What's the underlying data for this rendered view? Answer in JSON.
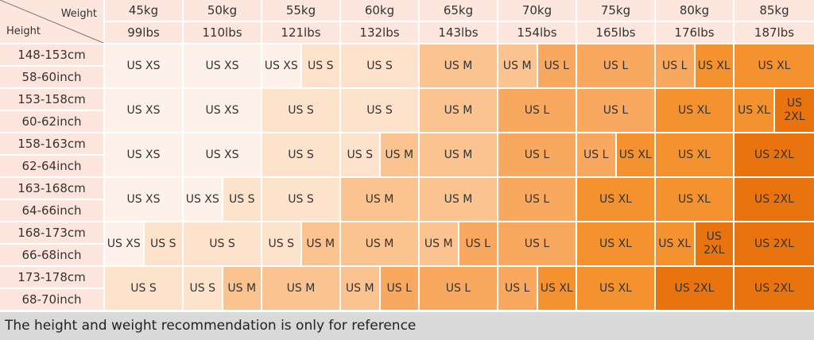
{
  "header": {
    "weight_label": "Weight",
    "height_label": "Height",
    "kg": [
      "45kg",
      "50kg",
      "55kg",
      "60kg",
      "65kg",
      "70kg",
      "75kg",
      "80kg",
      "85kg"
    ],
    "lbs": [
      "99lbs",
      "110lbs",
      "121lbs",
      "132lbs",
      "143lbs",
      "154lbs",
      "165lbs",
      "176lbs",
      "187lbs"
    ]
  },
  "palette": {
    "US XS": "#fdf1ea",
    "US S": "#fde2cc",
    "US M": "#fbc38f",
    "US L": "#f8a85f",
    "US XL": "#f3922f",
    "US 2XL": "#e8730f"
  },
  "rows": [
    {
      "cm": "148-153cm",
      "inch": "58-60inch",
      "cells": [
        [
          "US XS"
        ],
        [
          "US XS"
        ],
        [
          "US XS",
          "US S"
        ],
        [
          "US S"
        ],
        [
          "US M"
        ],
        [
          "US M",
          "US L"
        ],
        [
          "US L"
        ],
        [
          "US L",
          "US XL"
        ],
        [
          "US XL"
        ]
      ]
    },
    {
      "cm": "153-158cm",
      "inch": "60-62inch",
      "cells": [
        [
          "US XS"
        ],
        [
          "US XS"
        ],
        [
          "US S"
        ],
        [
          "US S"
        ],
        [
          "US M"
        ],
        [
          "US L"
        ],
        [
          "US L"
        ],
        [
          "US XL"
        ],
        [
          "US XL",
          "US 2XL"
        ]
      ]
    },
    {
      "cm": "158-163cm",
      "inch": "62-64inch",
      "cells": [
        [
          "US XS"
        ],
        [
          "US XS"
        ],
        [
          "US S"
        ],
        [
          "US S",
          "US M"
        ],
        [
          "US M"
        ],
        [
          "US L"
        ],
        [
          "US L",
          "US XL"
        ],
        [
          "US XL"
        ],
        [
          "US 2XL"
        ]
      ]
    },
    {
      "cm": "163-168cm",
      "inch": "64-66inch",
      "cells": [
        [
          "US XS"
        ],
        [
          "US XS",
          "US S"
        ],
        [
          "US S"
        ],
        [
          "US M"
        ],
        [
          "US M"
        ],
        [
          "US L"
        ],
        [
          "US XL"
        ],
        [
          "US XL"
        ],
        [
          "US 2XL"
        ]
      ]
    },
    {
      "cm": "168-173cm",
      "inch": "66-68inch",
      "cells": [
        [
          "US XS",
          "US S"
        ],
        [
          "US S"
        ],
        [
          "US S",
          "US M"
        ],
        [
          "US M"
        ],
        [
          "US M",
          "US L"
        ],
        [
          "US L"
        ],
        [
          "US XL"
        ],
        [
          "US XL",
          "US 2XL"
        ],
        [
          "US 2XL"
        ]
      ]
    },
    {
      "cm": "173-178cm",
      "inch": "68-70inch",
      "cells": [
        [
          "US S"
        ],
        [
          "US S",
          "US M"
        ],
        [
          "US M"
        ],
        [
          "US M",
          "US L"
        ],
        [
          "US L"
        ],
        [
          "US L",
          "US XL"
        ],
        [
          "US XL"
        ],
        [
          "US 2XL"
        ],
        [
          "US 2XL"
        ]
      ]
    }
  ],
  "footer": "The height and weight recommendation is only for reference"
}
